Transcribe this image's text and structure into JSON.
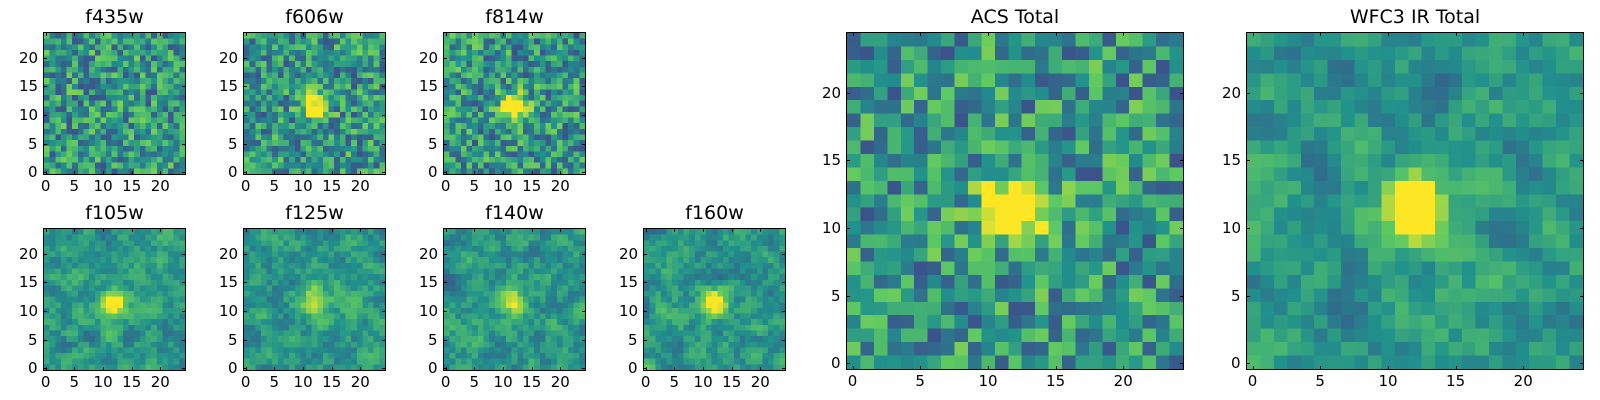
{
  "figure": {
    "colormap": "viridis",
    "colormap_stops": [
      "#440154",
      "#3b528b",
      "#21918c",
      "#5ec962",
      "#fde725"
    ],
    "panels": [
      {
        "key": "f435w",
        "title": "f435w",
        "xticks": [
          "0",
          "5",
          "10",
          "15",
          "20"
        ],
        "yticks": [
          "0",
          "5",
          "10",
          "15",
          "20"
        ],
        "source_peak": 0.05,
        "seed": 11
      },
      {
        "key": "f606w",
        "title": "f606w",
        "xticks": [
          "0",
          "5",
          "10",
          "15",
          "20"
        ],
        "yticks": [
          "0",
          "5",
          "10",
          "15",
          "20"
        ],
        "source_peak": 0.7,
        "seed": 23
      },
      {
        "key": "f814w",
        "title": "f814w",
        "xticks": [
          "0",
          "5",
          "10",
          "15",
          "20"
        ],
        "yticks": [
          "0",
          "5",
          "10",
          "15",
          "20"
        ],
        "source_peak": 0.75,
        "seed": 37
      },
      {
        "key": "f105w",
        "title": "f105w",
        "xticks": [
          "0",
          "5",
          "10",
          "15",
          "20"
        ],
        "yticks": [
          "0",
          "5",
          "10",
          "15",
          "20"
        ],
        "source_peak": 0.6,
        "seed": 41
      },
      {
        "key": "f125w",
        "title": "f125w",
        "xticks": [
          "0",
          "5",
          "10",
          "15",
          "20"
        ],
        "yticks": [
          "0",
          "5",
          "10",
          "15",
          "20"
        ],
        "source_peak": 0.55,
        "seed": 53
      },
      {
        "key": "f140w",
        "title": "f140w",
        "xticks": [
          "0",
          "5",
          "10",
          "15",
          "20"
        ],
        "yticks": [
          "0",
          "5",
          "10",
          "15",
          "20"
        ],
        "source_peak": 0.5,
        "seed": 67
      },
      {
        "key": "f160w",
        "title": "f160w",
        "xticks": [
          "0",
          "5",
          "10",
          "15",
          "20"
        ],
        "yticks": [
          "0",
          "5",
          "10",
          "15",
          "20"
        ],
        "source_peak": 0.6,
        "seed": 71
      },
      {
        "key": "acs_total",
        "title": "ACS Total",
        "xticks": [
          "0",
          "5",
          "10",
          "15",
          "20"
        ],
        "yticks": [
          "0",
          "5",
          "10",
          "15",
          "20"
        ],
        "source_peak": 1.0,
        "seed": 83
      },
      {
        "key": "wfc3_total",
        "title": "WFC3 IR Total",
        "xticks": [
          "0",
          "5",
          "10",
          "15",
          "20"
        ],
        "yticks": [
          "0",
          "5",
          "10",
          "15",
          "20"
        ],
        "source_peak": 1.0,
        "seed": 97
      }
    ]
  }
}
